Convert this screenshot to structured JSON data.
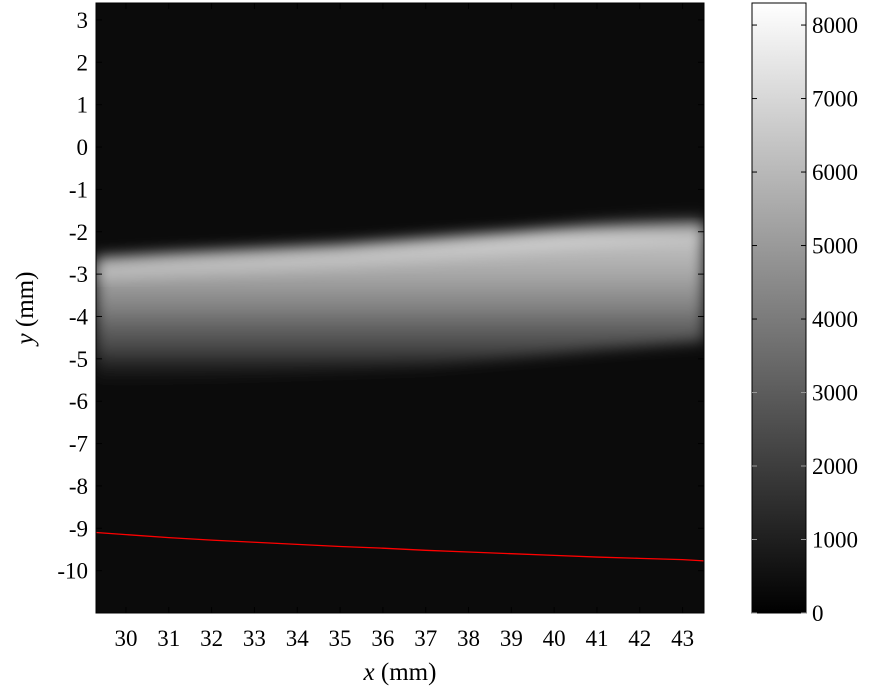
{
  "chart_data": {
    "type": "heatmap",
    "colormap": "gray",
    "xlabel": {
      "var": "x",
      "unit": " (mm)"
    },
    "ylabel": {
      "var": "y",
      "unit": " (mm)"
    },
    "xlim": [
      29.3,
      43.5
    ],
    "ylim": [
      -11.0,
      3.4
    ],
    "xticks": [
      30,
      31,
      32,
      33,
      34,
      35,
      36,
      37,
      38,
      39,
      40,
      41,
      42,
      43
    ],
    "xtick_labels": [
      "30",
      "31",
      "32",
      "33",
      "34",
      "35",
      "36",
      "37",
      "38",
      "39",
      "40",
      "41",
      "42",
      "43"
    ],
    "yticks": [
      3,
      2,
      1,
      0,
      -1,
      -2,
      -3,
      -4,
      -5,
      -6,
      -7,
      -8,
      -9,
      -10
    ],
    "ytick_labels": [
      "3",
      "2",
      "1",
      "0",
      "-1",
      "-2",
      "-3",
      "-4",
      "-5",
      "-6",
      "-7",
      "-8",
      "-9",
      "-10"
    ],
    "colorbar": {
      "range": [
        0,
        8300
      ],
      "ticks": [
        0,
        1000,
        2000,
        3000,
        4000,
        5000,
        6000,
        7000,
        8000
      ],
      "tick_labels": [
        "0",
        "1000",
        "2000",
        "3000",
        "4000",
        "5000",
        "6000",
        "7000",
        "8000"
      ]
    },
    "beam_band": {
      "x": [
        29.3,
        31,
        33,
        35,
        37,
        39,
        41,
        43.5
      ],
      "center_y": [
        -3.9,
        -3.8,
        -3.7,
        -3.55,
        -3.4,
        -3.2,
        -3.05,
        -2.85
      ],
      "upper_edge_y": [
        -2.6,
        -2.5,
        -2.4,
        -2.3,
        -2.15,
        -2.0,
        -1.8,
        -1.6
      ],
      "lower_edge_y": [
        -5.6,
        -5.5,
        -5.4,
        -5.3,
        -5.2,
        -5.0,
        -4.8,
        -4.6
      ],
      "peak_intensity": 7200,
      "background_intensity": 400
    },
    "line_series": {
      "color": "#ff0000",
      "x": [
        29.3,
        30,
        31,
        32,
        33,
        34,
        35,
        36,
        37,
        38,
        39,
        40,
        41,
        42,
        43,
        43.5
      ],
      "y": [
        -9.1,
        -9.15,
        -9.22,
        -9.28,
        -9.33,
        -9.38,
        -9.43,
        -9.47,
        -9.52,
        -9.56,
        -9.6,
        -9.64,
        -9.68,
        -9.71,
        -9.74,
        -9.77
      ]
    }
  }
}
